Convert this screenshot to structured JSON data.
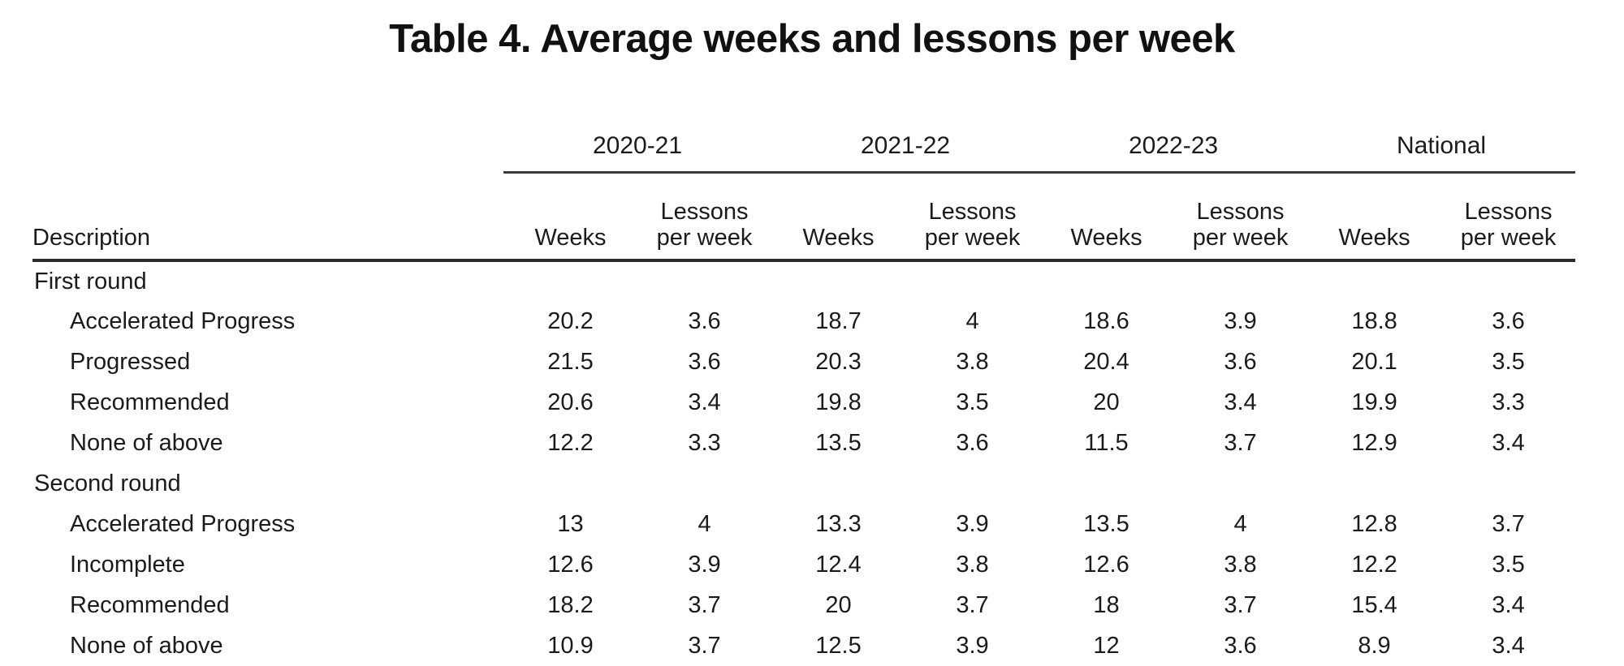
{
  "title": "Table 4. Average weeks and lessons per week",
  "chart_data": {
    "type": "table",
    "title": "Table 4. Average weeks and lessons per week",
    "description_header": "Description",
    "year_groups": [
      "2020-21",
      "2021-22",
      "2022-23",
      "National"
    ],
    "sub_columns": [
      "Weeks",
      "Lessons per week"
    ],
    "columns": [
      "Description",
      "2020-21 Weeks",
      "2020-21 Lessons per week",
      "2021-22 Weeks",
      "2021-22 Lessons per week",
      "2022-23 Weeks",
      "2022-23 Lessons per week",
      "National Weeks",
      "National Lessons per week"
    ],
    "sections": [
      {
        "label": "First round",
        "rows": [
          {
            "label": "Accelerated Progress",
            "values": [
              20.2,
              3.6,
              18.7,
              4,
              18.6,
              3.9,
              18.8,
              3.6
            ]
          },
          {
            "label": "Progressed",
            "values": [
              21.5,
              3.6,
              20.3,
              3.8,
              20.4,
              3.6,
              20.1,
              3.5
            ]
          },
          {
            "label": "Recommended",
            "values": [
              20.6,
              3.4,
              19.8,
              3.5,
              20,
              3.4,
              19.9,
              3.3
            ]
          },
          {
            "label": "None of above",
            "values": [
              12.2,
              3.3,
              13.5,
              3.6,
              11.5,
              3.7,
              12.9,
              3.4
            ]
          }
        ]
      },
      {
        "label": "Second round",
        "rows": [
          {
            "label": "Accelerated Progress",
            "values": [
              13,
              4,
              13.3,
              3.9,
              13.5,
              4,
              12.8,
              3.7
            ]
          },
          {
            "label": "Incomplete",
            "values": [
              12.6,
              3.9,
              12.4,
              3.8,
              12.6,
              3.8,
              12.2,
              3.5
            ]
          },
          {
            "label": "Recommended",
            "values": [
              18.2,
              3.7,
              20,
              3.7,
              18,
              3.7,
              15.4,
              3.4
            ]
          },
          {
            "label": "None of above",
            "values": [
              10.9,
              3.7,
              12.5,
              3.9,
              12,
              3.6,
              8.9,
              3.4
            ]
          }
        ]
      }
    ]
  }
}
